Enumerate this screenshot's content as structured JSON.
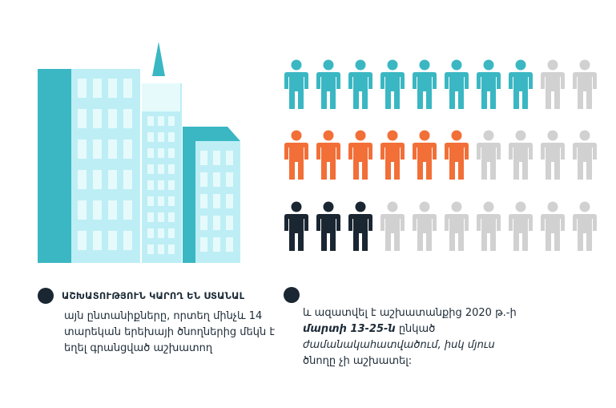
{
  "colors": {
    "teal": "#3ab7c3",
    "light_blue": "#bdeef5",
    "window": "#e6fafc",
    "orange": "#f26f38",
    "navy": "#1a2632",
    "gray": "#d1d1d1"
  },
  "icons": {
    "building": "buildings-icon",
    "person": "person-icon"
  },
  "people_rows": [
    {
      "highlighted": 8,
      "total": 10,
      "color_key": "teal"
    },
    {
      "highlighted": 6,
      "total": 10,
      "color_key": "orange"
    },
    {
      "highlighted": 3,
      "total": 10,
      "color_key": "navy"
    }
  ],
  "left_note": {
    "heading": "ԱՇԽԱՏՈՒԹՅՈՒՆ ԿԱՐՈՂ ԵՆ ՍՏԱՆԱԼ",
    "lines": [
      "այն ընտանիքները, որտեղ մինչև 14",
      "տարեկան երեխայի ծնողներից մեկն է",
      "եղել գրանցված աշխատող"
    ]
  },
  "right_note": {
    "line1": "և ազատվել է աշխատանքից 2020 թ.-ի",
    "line2_bold": "մարտի 13-25-ն",
    "line2_rest": " ընկած",
    "line3": "ժամանակահատվածում, իսկ մյուս",
    "line4": "ծնողը չի աշխատել:"
  }
}
